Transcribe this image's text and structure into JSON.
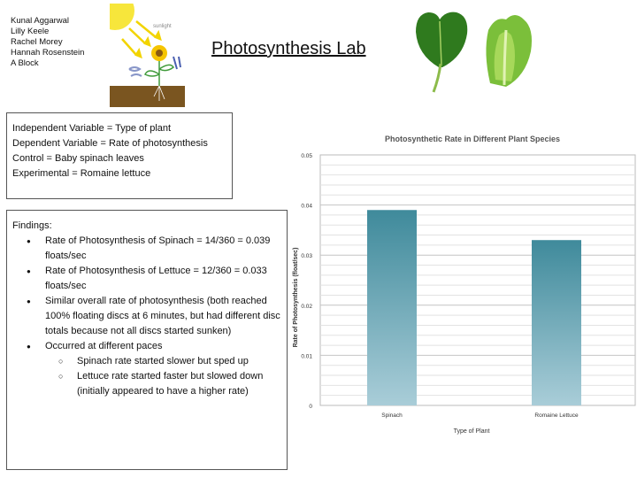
{
  "authors": [
    "Kunal Aggarwal",
    "Lilly Keele",
    "Rachel Morey",
    "Hannah Rosenstein",
    "A Block"
  ],
  "title": "Photosynthesis Lab",
  "diagram": {
    "sunlight_label": "sunlight"
  },
  "variables": [
    "Independent Variable = Type of plant",
    "Dependent Variable = Rate of photosynthesis",
    "Control = Baby spinach leaves",
    "Experimental = Romaine lettuce"
  ],
  "findings": {
    "heading": "Findings:",
    "items": [
      "Rate of Photosynthesis of Spinach = 14/360 =  0.039 floats/sec",
      "Rate of Photosynthesis of Lettuce = 12/360 = 0.033 floats/sec",
      "Similar overall rate of photosynthesis (both reached 100% floating discs at 6 minutes, but had different disc totals because not all discs started sunken)",
      "Occurred at different paces"
    ],
    "subitems": [
      "Spinach rate started slower but sped up",
      "Lettuce rate started faster but slowed down (initially appeared to have a higher rate)"
    ]
  },
  "chart_data": {
    "type": "bar",
    "title": "Photosynthetic Rate in Different Plant Species",
    "categories": [
      "Spinach",
      "Romaine Lettuce"
    ],
    "values": [
      0.039,
      0.033
    ],
    "xlabel": "Type of Plant",
    "ylabel": "Rate of Photosynthesis (float/sec)",
    "ylim": [
      0,
      0.05
    ],
    "yticks": [
      "0",
      "0.01",
      "0.02",
      "0.03",
      "0.04",
      "0.05"
    ],
    "grid": true,
    "bar_color_top": "#3f8a9b",
    "bar_color_bottom": "#a9cdd8"
  }
}
